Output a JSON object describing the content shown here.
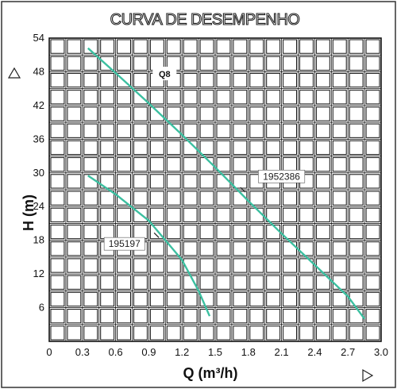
{
  "chart_data": {
    "type": "line",
    "title": "CURVA DE DESEMPENHO",
    "xlabel": "Q (m³/h)",
    "ylabel": "H (m)",
    "xlim": [
      0,
      3.0
    ],
    "ylim": [
      0,
      54
    ],
    "x_ticks": [
      "0",
      "0.3",
      "0.6",
      "0.9",
      "1.2",
      "1.5",
      "1.8",
      "2.1",
      "2.4",
      "2.7",
      "3.0"
    ],
    "y_ticks": [
      "6",
      "12",
      "18",
      "24",
      "30",
      "36",
      "42",
      "48",
      "54"
    ],
    "grid": true,
    "inset_label": "Q8",
    "series": [
      {
        "name": "1952386",
        "color": "#3cbfa0",
        "x": [
          0.35,
          0.6,
          0.9,
          1.2,
          1.5,
          1.8,
          2.1,
          2.4,
          2.7,
          2.85
        ],
        "y": [
          52.2,
          47.8,
          42.4,
          36.8,
          31,
          25,
          19.2,
          13.6,
          8,
          4
        ]
      },
      {
        "name": "195197",
        "color": "#3cbfa0",
        "x": [
          0.35,
          0.6,
          0.9,
          1.2,
          1.35,
          1.45
        ],
        "y": [
          29.5,
          26.2,
          21.5,
          14.5,
          9,
          4.5
        ]
      }
    ]
  }
}
